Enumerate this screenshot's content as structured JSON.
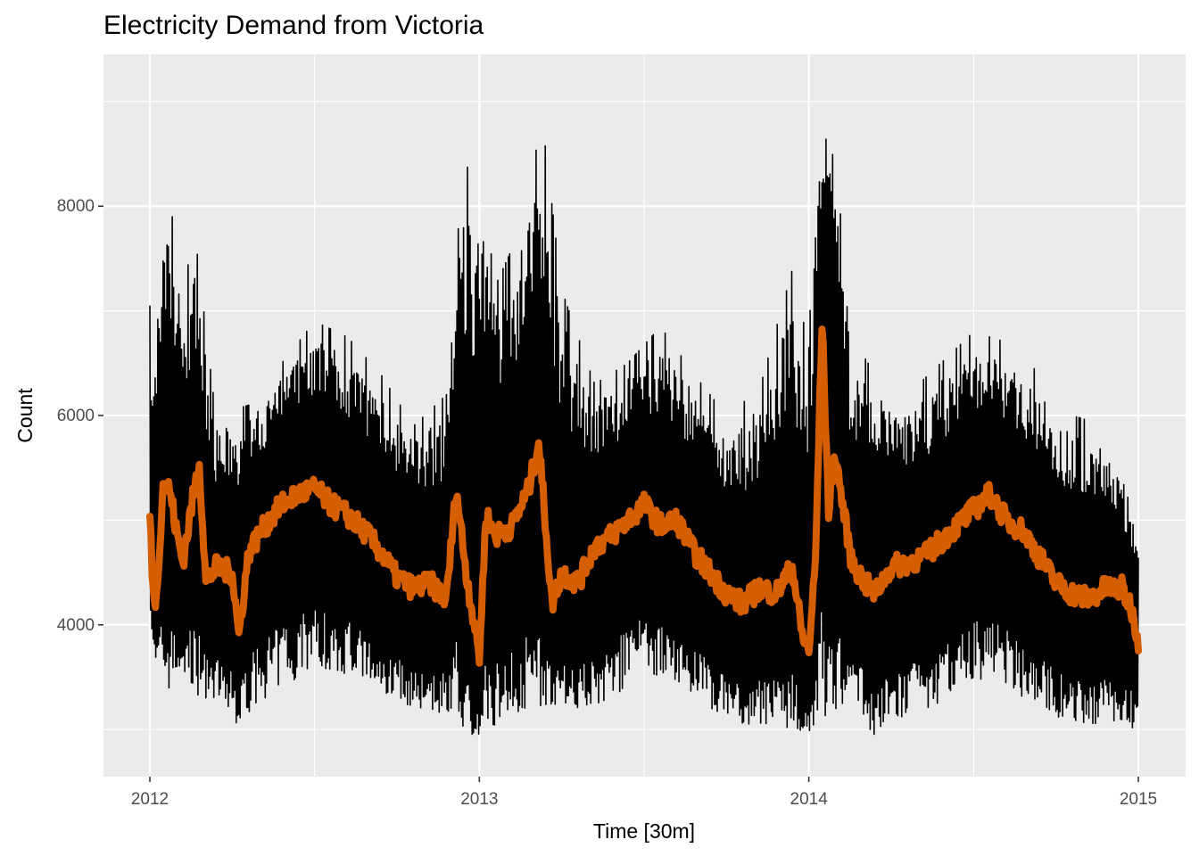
{
  "chart_data": {
    "type": "line",
    "title": "Electricity Demand from Victoria",
    "xlabel": "Time [30m]",
    "ylabel": "Count",
    "x_ticks": [
      "2012",
      "2013",
      "2014",
      "2015"
    ],
    "y_ticks": [
      4000,
      6000,
      8000
    ],
    "xlim": [
      2012.0,
      2015.0
    ],
    "ylim": [
      2550,
      9450
    ],
    "grid": true,
    "colors": {
      "raw": "#000000",
      "smooth": "#D55E00",
      "panel": "#EBEBEB",
      "grid": "#FFFFFF"
    },
    "series": [
      {
        "role": "half-hourly demand (upper envelope)",
        "x": [
          2012.0,
          2012.02,
          2012.04,
          2012.06,
          2012.1,
          2012.14,
          2012.2,
          2012.3,
          2012.4,
          2012.5,
          2012.6,
          2012.7,
          2012.8,
          2012.9,
          2012.95,
          2013.0,
          2013.05,
          2013.1,
          2013.15,
          2013.19,
          2013.25,
          2013.35,
          2013.45,
          2013.55,
          2013.65,
          2013.75,
          2013.85,
          2013.95,
          2014.0,
          2014.03,
          2014.05,
          2014.08,
          2014.12,
          2014.2,
          2014.3,
          2014.4,
          2014.5,
          2014.6,
          2014.7,
          2014.8,
          2014.9,
          2015.0
        ],
        "values": [
          7050,
          6700,
          7800,
          8050,
          7300,
          7650,
          6000,
          6100,
          6500,
          6900,
          6750,
          6400,
          5900,
          6200,
          8400,
          8300,
          7250,
          7600,
          8150,
          8850,
          7200,
          6300,
          6500,
          6850,
          6400,
          6000,
          6250,
          7400,
          6650,
          9300,
          8600,
          9200,
          6800,
          6400,
          6200,
          6500,
          6800,
          6700,
          6400,
          6000,
          5900,
          4900
        ]
      },
      {
        "role": "half-hourly demand (lower envelope)",
        "x": [
          2012.0,
          2012.05,
          2012.1,
          2012.2,
          2012.26,
          2012.35,
          2012.5,
          2012.6,
          2012.7,
          2012.8,
          2012.9,
          2013.0,
          2013.05,
          2013.15,
          2013.25,
          2013.35,
          2013.5,
          2013.6,
          2013.7,
          2013.8,
          2013.9,
          2014.0,
          2014.05,
          2014.15,
          2014.2,
          2014.3,
          2014.4,
          2014.5,
          2014.6,
          2014.7,
          2014.8,
          2014.9,
          2015.0
        ],
        "values": [
          3800,
          3350,
          3400,
          3250,
          3050,
          3300,
          3600,
          3500,
          3350,
          3200,
          3150,
          2900,
          3050,
          3200,
          3250,
          3150,
          3550,
          3400,
          3200,
          3050,
          3050,
          2950,
          3100,
          3200,
          2900,
          3100,
          3250,
          3500,
          3400,
          3200,
          3050,
          3050,
          3000
        ]
      },
      {
        "role": "smoothed demand (orange trend)",
        "x": [
          2012.0,
          2012.01,
          2012.02,
          2012.04,
          2012.06,
          2012.08,
          2012.1,
          2012.13,
          2012.15,
          2012.17,
          2012.2,
          2012.25,
          2012.27,
          2012.3,
          2012.35,
          2012.4,
          2012.45,
          2012.5,
          2012.55,
          2012.6,
          2012.65,
          2012.7,
          2012.75,
          2012.8,
          2012.85,
          2012.9,
          2012.93,
          2012.96,
          2013.0,
          2013.02,
          2013.05,
          2013.1,
          2013.15,
          2013.18,
          2013.2,
          2013.22,
          2013.25,
          2013.3,
          2013.35,
          2013.4,
          2013.45,
          2013.5,
          2013.55,
          2013.6,
          2013.65,
          2013.7,
          2013.75,
          2013.8,
          2013.85,
          2013.9,
          2013.95,
          2013.98,
          2014.0,
          2014.02,
          2014.04,
          2014.06,
          2014.08,
          2014.1,
          2014.13,
          2014.17,
          2014.2,
          2014.25,
          2014.3,
          2014.35,
          2014.4,
          2014.45,
          2014.5,
          2014.55,
          2014.6,
          2014.65,
          2014.7,
          2014.75,
          2014.8,
          2014.85,
          2014.9,
          2014.95,
          2014.98,
          2015.0
        ],
        "values": [
          5050,
          4300,
          4250,
          5350,
          5300,
          4900,
          4600,
          5200,
          5550,
          4400,
          4550,
          4500,
          3900,
          4700,
          4950,
          5150,
          5250,
          5300,
          5150,
          5050,
          4900,
          4700,
          4450,
          4350,
          4400,
          4250,
          5300,
          4500,
          3700,
          5050,
          4850,
          4950,
          5300,
          5750,
          5000,
          4200,
          4500,
          4400,
          4750,
          4850,
          5000,
          5150,
          4950,
          5000,
          4700,
          4500,
          4300,
          4200,
          4350,
          4300,
          4550,
          3900,
          3750,
          4600,
          6900,
          5100,
          5650,
          5200,
          4600,
          4400,
          4300,
          4550,
          4600,
          4650,
          4800,
          4950,
          5100,
          5250,
          5000,
          4900,
          4650,
          4400,
          4300,
          4250,
          4350,
          4350,
          4150,
          3850
        ]
      }
    ]
  }
}
